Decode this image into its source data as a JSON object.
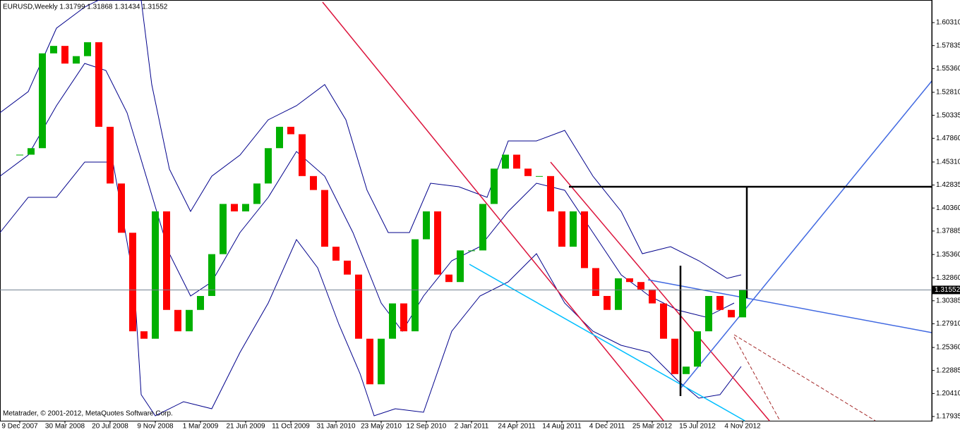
{
  "chart_data": {
    "type": "candlestick",
    "title": "EURUSD,Weekly  1.31799 1.31868 1.31434 1.31552",
    "credit": "Metatrader, © 2001-2012, MetaQuotes Software Corp.",
    "categories": [
      "9 Dec 2007",
      null,
      null,
      null,
      "30 Mar 2008",
      null,
      null,
      null,
      "20 Jul 2008",
      null,
      null,
      null,
      "9 Nov 2008",
      null,
      null,
      null,
      "1 Mar 2009",
      null,
      null,
      null,
      "21 Jun 2009",
      null,
      null,
      null,
      "11 Oct 2009",
      null,
      null,
      null,
      "31 Jan 2010",
      null,
      null,
      null,
      "23 May 2010",
      null,
      null,
      null,
      "12 Sep 2010",
      null,
      null,
      null,
      "2 Jan 2011",
      null,
      null,
      null,
      "24 Apr 2011",
      null,
      null,
      null,
      "14 Aug 2011",
      null,
      null,
      null,
      "4 Dec 2011",
      null,
      null,
      null,
      "25 Mar 2012",
      null,
      null,
      null,
      "15 Jul 2012",
      null,
      null,
      null,
      "4 Nov 2012"
    ],
    "series": [
      {
        "name": "EURUSD",
        "up_color": "#00b000",
        "down_color": "#ff0000",
        "values": [
          1.461,
          1.468,
          1.57,
          1.578,
          1.559,
          1.567,
          1.582,
          1.491,
          1.43,
          1.377,
          1.271,
          1.263,
          1.4,
          1.294,
          1.271,
          1.294,
          1.309,
          1.354,
          1.408,
          1.4,
          1.408,
          1.43,
          1.468,
          1.491,
          1.483,
          1.438,
          1.423,
          1.362,
          1.347,
          1.332,
          1.263,
          1.214,
          1.263,
          1.301,
          1.271,
          1.37,
          1.4,
          1.332,
          1.324,
          1.358,
          1.358,
          1.408,
          1.446,
          1.461,
          1.446,
          1.438,
          1.438,
          1.4,
          1.362,
          1.4,
          1.339,
          1.309,
          1.294,
          1.328,
          1.324,
          1.316,
          1.301,
          1.263,
          1.225,
          1.233,
          1.271,
          1.309,
          1.294,
          1.286,
          1.3155
        ]
      }
    ],
    "ylim": [
      1.1748,
      1.6274
    ],
    "yticks": [
      {
        "value": 1.6031,
        "label": "1.60310"
      },
      {
        "value": 1.57835,
        "label": "1.57835"
      },
      {
        "value": 1.5536,
        "label": "1.55360"
      },
      {
        "value": 1.5281,
        "label": "1.52810"
      },
      {
        "value": 1.50335,
        "label": "1.50335"
      },
      {
        "value": 1.4786,
        "label": "1.47860"
      },
      {
        "value": 1.4531,
        "label": "1.45310"
      },
      {
        "value": 1.42835,
        "label": "1.42835"
      },
      {
        "value": 1.4036,
        "label": "1.40360"
      },
      {
        "value": 1.37885,
        "label": "1.37885"
      },
      {
        "value": 1.3536,
        "label": "1.35360"
      },
      {
        "value": 1.3286,
        "label": "1.32860"
      },
      {
        "value": 1.30385,
        "label": "1.30385"
      },
      {
        "value": 1.2791,
        "label": "1.27910"
      },
      {
        "value": 1.2536,
        "label": "1.25360"
      },
      {
        "value": 1.22885,
        "label": "1.22885"
      },
      {
        "value": 1.2041,
        "label": "1.20410"
      },
      {
        "value": 1.17935,
        "label": "1.17935"
      }
    ],
    "last_price": {
      "value": 1.31552,
      "label": "1.31552"
    }
  }
}
